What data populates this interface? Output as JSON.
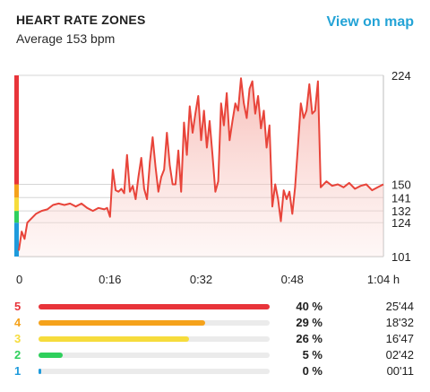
{
  "header": {
    "title": "HEART RATE ZONES",
    "subtitle": "Average 153 bpm",
    "map_link": "View on map"
  },
  "colors": {
    "accent": "#23a3d6",
    "line": "#e8443a",
    "zone5": "#e8343a",
    "zone4": "#f5a21b",
    "zone3": "#f6dc3c",
    "zone2": "#2fcf5c",
    "zone1": "#1f9bdc"
  },
  "chart_data": {
    "type": "area",
    "x_unit": "minutes",
    "x_ticks": [
      {
        "value": 0,
        "label": "0"
      },
      {
        "value": 16,
        "label": "0:16"
      },
      {
        "value": 32,
        "label": "0:32"
      },
      {
        "value": 48,
        "label": "0:48"
      },
      {
        "value": 64,
        "label": "1:04 h"
      }
    ],
    "y_ticks": [
      {
        "value": 101,
        "label": "101"
      },
      {
        "value": 124,
        "label": "124"
      },
      {
        "value": 132,
        "label": "132"
      },
      {
        "value": 141,
        "label": "141"
      },
      {
        "value": 150,
        "label": "150"
      },
      {
        "value": 224,
        "label": "224"
      }
    ],
    "ylim": [
      101,
      224
    ],
    "xlim": [
      0,
      64
    ],
    "grid": true,
    "zone_bands": [
      {
        "zone": "1",
        "from": 101,
        "to": 124
      },
      {
        "zone": "2",
        "from": 124,
        "to": 132
      },
      {
        "zone": "3",
        "from": 132,
        "to": 141
      },
      {
        "zone": "4",
        "from": 141,
        "to": 150
      },
      {
        "zone": "5",
        "from": 150,
        "to": 224
      }
    ],
    "series": [
      {
        "x": [
          0,
          0.5,
          1,
          1.5,
          2,
          2.5,
          3,
          4,
          5,
          6,
          7,
          8,
          9,
          10,
          11,
          12,
          13,
          14,
          15,
          15.5,
          16,
          16.5,
          17,
          17.5,
          18,
          18.5,
          19,
          19.5,
          20,
          20.5,
          21,
          21.5,
          22,
          22.5,
          23,
          23.5,
          24,
          24.5,
          25,
          25.5,
          26,
          26.5,
          27,
          27.5,
          28,
          28.5,
          29,
          29.5,
          30,
          30.5,
          31,
          31.5,
          32,
          32.5,
          33,
          33.5,
          34,
          34.5,
          35,
          35.5,
          36,
          36.5,
          37,
          37.5,
          38,
          38.5,
          39,
          39.5,
          40,
          40.5,
          41,
          41.5,
          42,
          42.5,
          43,
          43.5,
          44,
          44.5,
          45,
          45.5,
          46,
          46.5,
          47,
          47.5,
          48,
          48.5,
          49,
          49.5,
          50,
          50.5,
          51,
          51.5,
          52,
          52.5,
          53,
          54,
          55,
          56,
          57,
          58,
          59,
          60,
          61,
          62,
          63,
          64
        ],
        "y": [
          105,
          118,
          113,
          124,
          126,
          128,
          130,
          132,
          133,
          136,
          137,
          136,
          137,
          135,
          137,
          134,
          132,
          134,
          133,
          134,
          128,
          160,
          146,
          145,
          147,
          144,
          170,
          145,
          149,
          140,
          155,
          168,
          147,
          140,
          165,
          182,
          162,
          145,
          155,
          160,
          185,
          163,
          150,
          150,
          173,
          145,
          192,
          170,
          203,
          185,
          198,
          210,
          180,
          200,
          175,
          193,
          170,
          145,
          152,
          205,
          190,
          212,
          180,
          193,
          205,
          200,
          222,
          205,
          195,
          215,
          220,
          198,
          210,
          188,
          200,
          175,
          190,
          135,
          150,
          140,
          125,
          146,
          140,
          145,
          130,
          148,
          176,
          205,
          195,
          200,
          218,
          198,
          200,
          220,
          148,
          152,
          149,
          150,
          148,
          151,
          147,
          149,
          150,
          146,
          148,
          150
        ]
      }
    ]
  },
  "zones": [
    {
      "label": "5",
      "percent_text": "40 %",
      "time": "25'44",
      "fraction": 1.0,
      "color": "#e8343a"
    },
    {
      "label": "4",
      "percent_text": "29 %",
      "time": "18'32",
      "fraction": 0.72,
      "color": "#f5a21b"
    },
    {
      "label": "3",
      "percent_text": "26 %",
      "time": "16'47",
      "fraction": 0.65,
      "color": "#f6dc3c"
    },
    {
      "label": "2",
      "percent_text": "5 %",
      "time": "02'42",
      "fraction": 0.105,
      "color": "#2fcf5c"
    },
    {
      "label": "1",
      "percent_text": "0 %",
      "time": "00'11",
      "fraction": 0.01,
      "color": "#1f9bdc"
    }
  ]
}
